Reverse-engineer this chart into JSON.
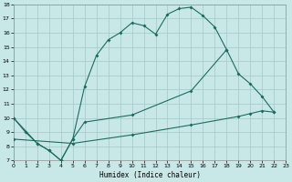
{
  "background_color": "#c8e8e8",
  "grid_color": "#a8cccc",
  "line_color": "#1e6b5e",
  "xlabel": "Humidex (Indice chaleur)",
  "xlim": [
    0,
    23
  ],
  "ylim": [
    7,
    18
  ],
  "xticks": [
    0,
    1,
    2,
    3,
    4,
    5,
    6,
    7,
    8,
    9,
    10,
    11,
    12,
    13,
    14,
    15,
    16,
    17,
    18,
    19,
    20,
    21,
    22,
    23
  ],
  "yticks": [
    7,
    8,
    9,
    10,
    11,
    12,
    13,
    14,
    15,
    16,
    17,
    18
  ],
  "line1": {
    "x": [
      0,
      1,
      2,
      3,
      4,
      5,
      6,
      7,
      8,
      9,
      10,
      11,
      12,
      13,
      14,
      15,
      16,
      17,
      18
    ],
    "y": [
      10.0,
      9.0,
      8.2,
      7.7,
      7.0,
      8.5,
      12.2,
      14.4,
      15.5,
      16.0,
      16.7,
      16.5,
      15.9,
      17.3,
      17.7,
      17.8,
      17.2,
      16.4,
      14.8
    ]
  },
  "line2": {
    "x": [
      0,
      2,
      3,
      4,
      5,
      6,
      10,
      15,
      18,
      19,
      20,
      21,
      22
    ],
    "y": [
      10.0,
      8.2,
      7.7,
      7.0,
      8.5,
      9.7,
      10.2,
      11.9,
      14.8,
      13.1,
      12.4,
      11.5,
      10.4
    ]
  },
  "line3": {
    "x": [
      0,
      5,
      10,
      15,
      19,
      20,
      21,
      22
    ],
    "y": [
      8.5,
      8.2,
      8.8,
      9.5,
      10.1,
      10.3,
      10.5,
      10.4
    ]
  }
}
